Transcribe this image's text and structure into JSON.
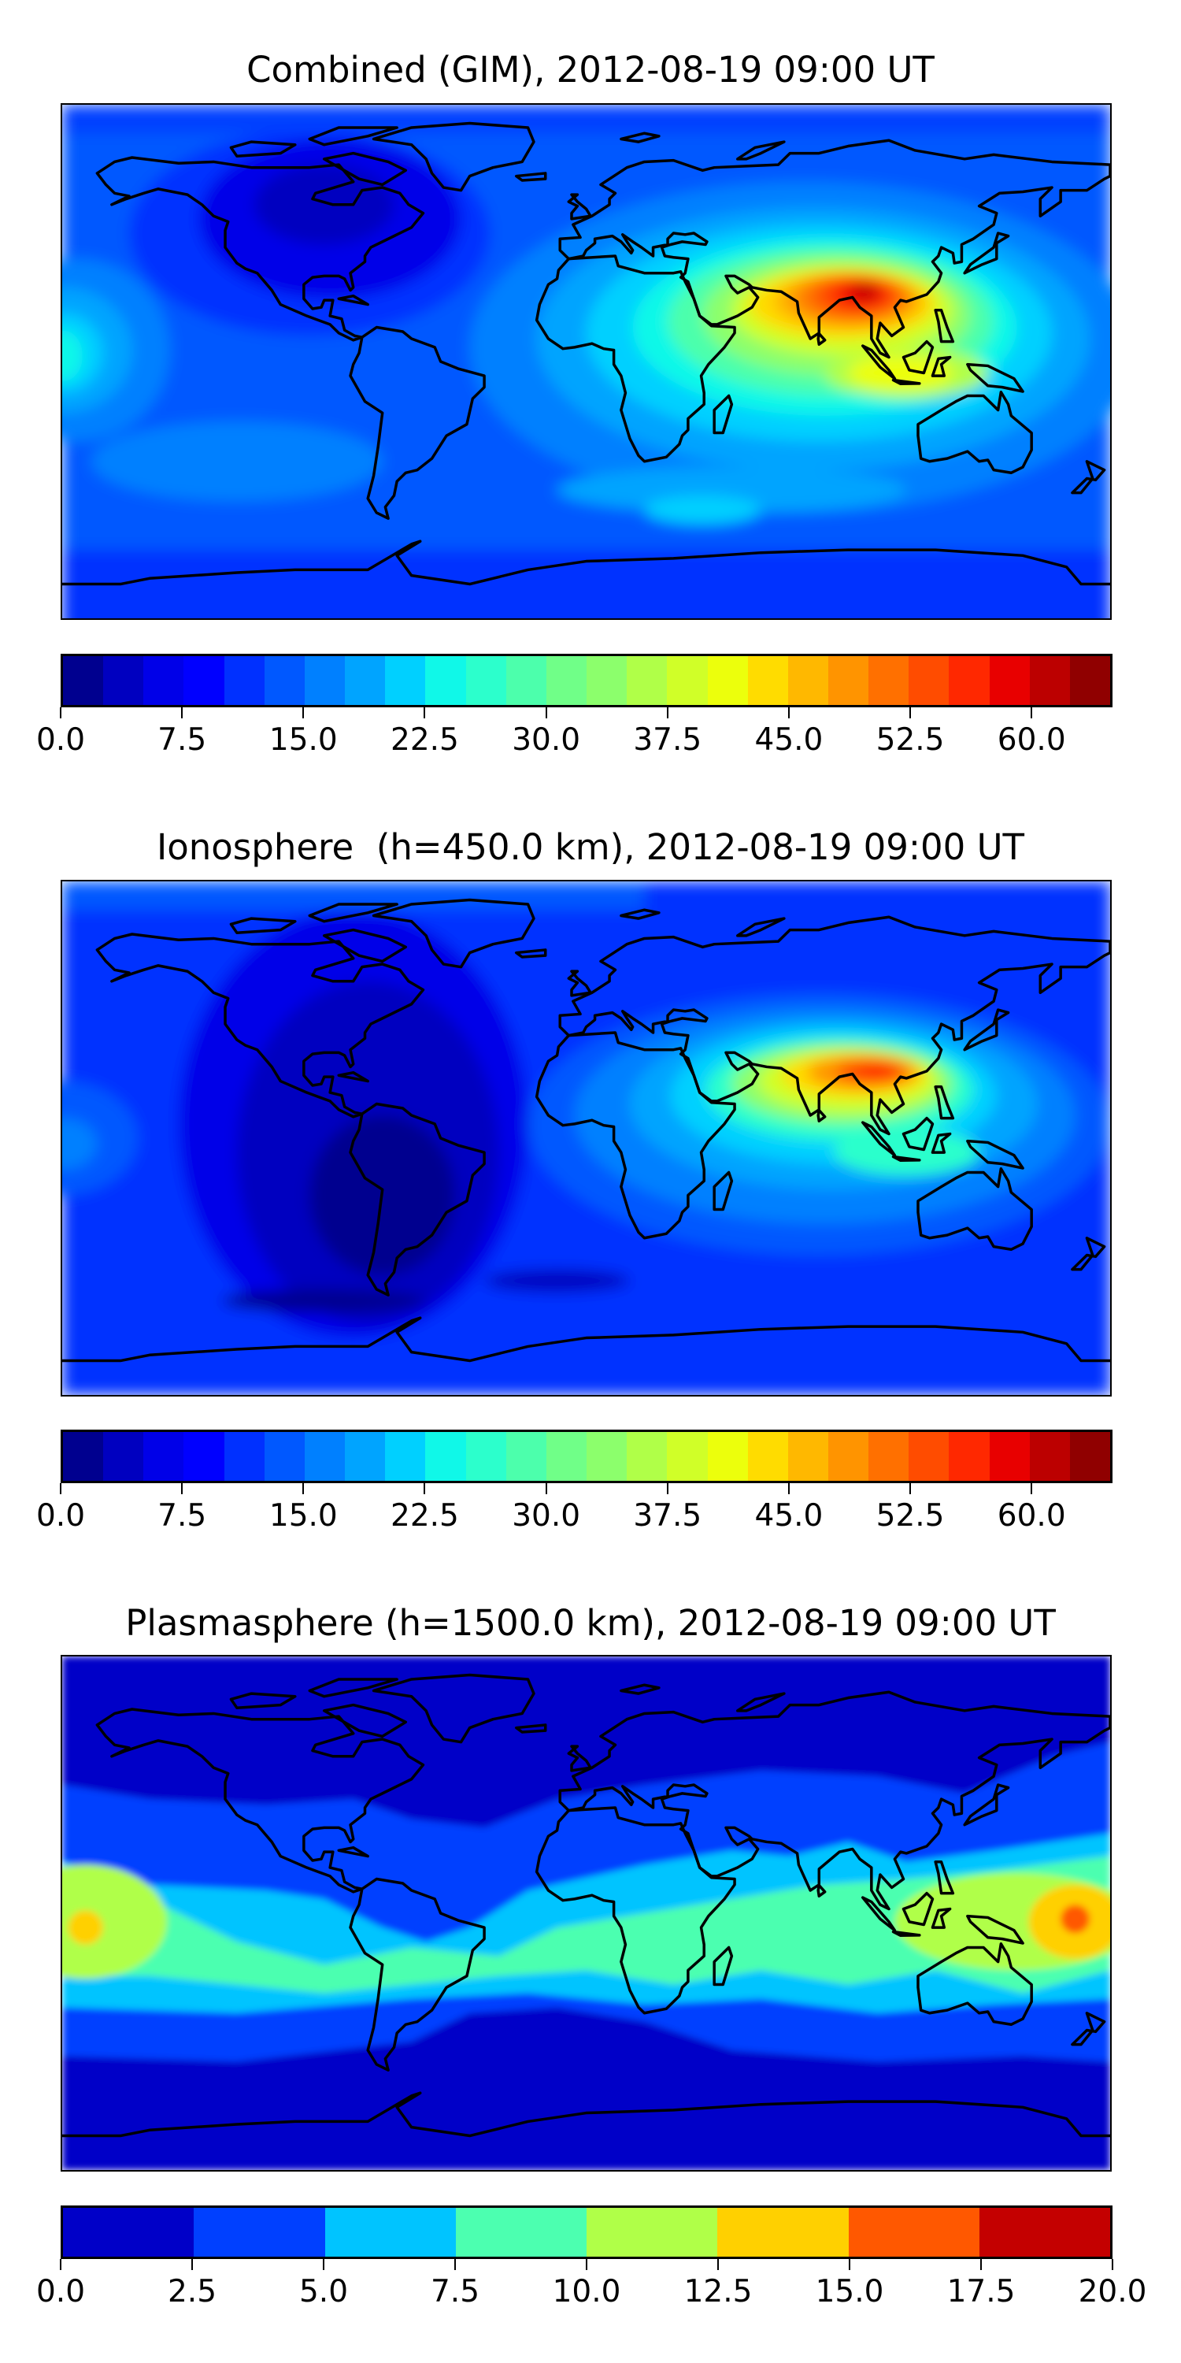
{
  "panels": [
    {
      "title": "Combined (GIM), 2012-08-19 09:00 UT",
      "colorbar": {
        "min": 0,
        "max": 65,
        "ticks": [
          "0.0",
          "7.5",
          "15.0",
          "22.5",
          "30.0",
          "37.5",
          "45.0",
          "52.5",
          "60.0"
        ],
        "colors": [
          "#00008f",
          "#0000c0",
          "#0000e8",
          "#0000ff",
          "#0030ff",
          "#0058ff",
          "#0080ff",
          "#00a4ff",
          "#00d0ff",
          "#10f8e8",
          "#2cffcc",
          "#4cffac",
          "#70ff88",
          "#8cff6c",
          "#b0ff48",
          "#d0ff28",
          "#ecff0c",
          "#ffdc00",
          "#ffb800",
          "#ff9400",
          "#ff7000",
          "#ff4c00",
          "#ff2800",
          "#e80000",
          "#bc0000",
          "#900000"
        ]
      }
    },
    {
      "title": "Ionosphere  (h=450.0 km), 2012-08-19 09:00 UT",
      "colorbar": {
        "min": 0,
        "max": 65,
        "ticks": [
          "0.0",
          "7.5",
          "15.0",
          "22.5",
          "30.0",
          "37.5",
          "45.0",
          "52.5",
          "60.0"
        ],
        "colors": [
          "#00008f",
          "#0000c0",
          "#0000e8",
          "#0000ff",
          "#0030ff",
          "#0058ff",
          "#0080ff",
          "#00a4ff",
          "#00d0ff",
          "#10f8e8",
          "#2cffcc",
          "#4cffac",
          "#70ff88",
          "#8cff6c",
          "#b0ff48",
          "#d0ff28",
          "#ecff0c",
          "#ffdc00",
          "#ffb800",
          "#ff9400",
          "#ff7000",
          "#ff4c00",
          "#ff2800",
          "#e80000",
          "#bc0000",
          "#900000"
        ]
      }
    },
    {
      "title": "Plasmasphere (h=1500.0 km), 2012-08-19 09:00 UT",
      "colorbar": {
        "min": 0,
        "max": 20,
        "ticks": [
          "0.0",
          "2.5",
          "5.0",
          "7.5",
          "10.0",
          "12.5",
          "15.0",
          "17.5",
          "20.0"
        ],
        "colors": [
          "#0000c8",
          "#0040ff",
          "#00c4ff",
          "#4cffb0",
          "#b0ff48",
          "#ffd000",
          "#ff5800",
          "#c40000"
        ]
      }
    }
  ]
}
